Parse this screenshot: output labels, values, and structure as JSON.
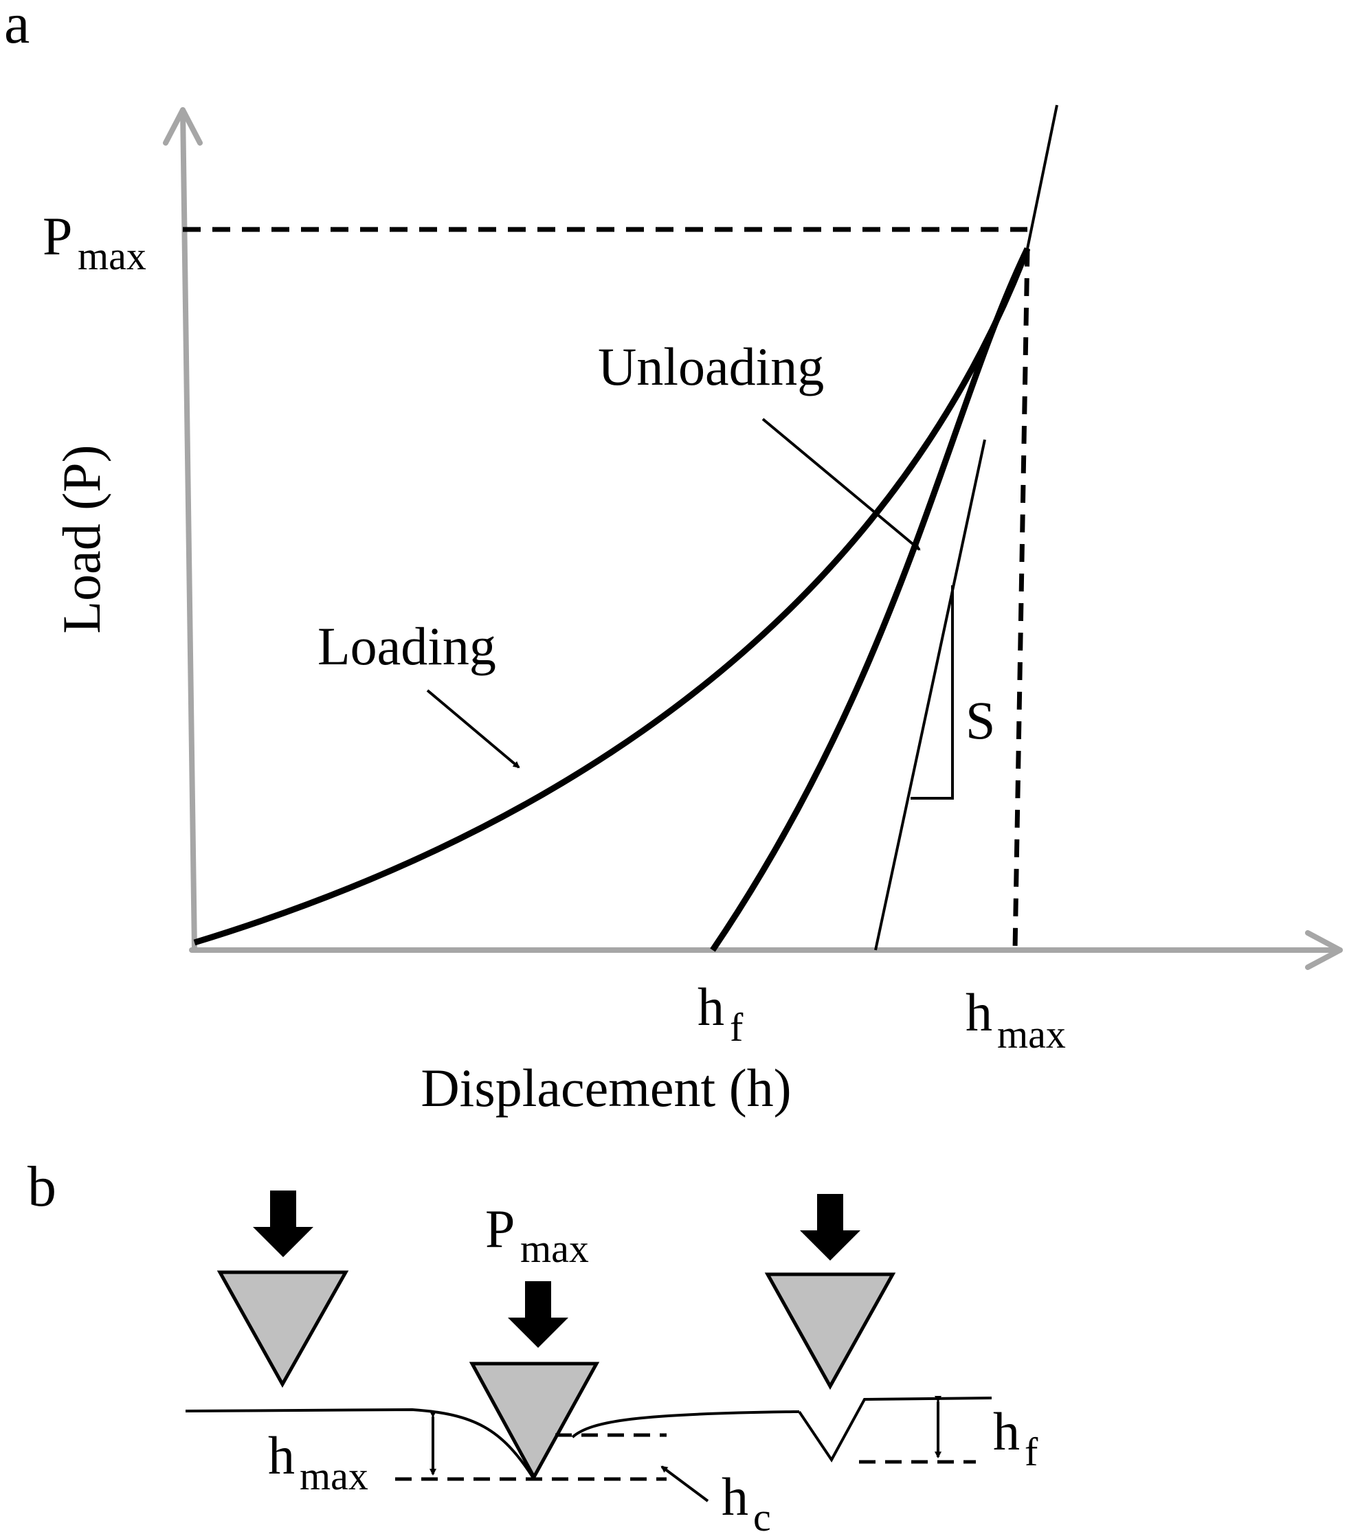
{
  "panel_a": {
    "panel_letter": "a",
    "y_axis_label": "Load (P)",
    "x_axis_label": "Displacement (h)",
    "pmax": {
      "main": "P",
      "sub": "max"
    },
    "hf": {
      "main": "h",
      "sub": "f"
    },
    "hmax": {
      "main": "h",
      "sub": "max"
    },
    "loading_label": "Loading",
    "unloading_label": "Unloading",
    "stiffness_label": "S"
  },
  "panel_b": {
    "panel_letter": "b",
    "pmax": {
      "main": "P",
      "sub": "max"
    },
    "hmax": {
      "main": "h",
      "sub": "max"
    },
    "hc": {
      "main": "h",
      "sub": "c"
    },
    "hf": {
      "main": "h",
      "sub": "f"
    }
  },
  "colors": {
    "axis": "#a6a6a6",
    "indenter_fill": "#c0c0c0",
    "line": "#000000"
  }
}
